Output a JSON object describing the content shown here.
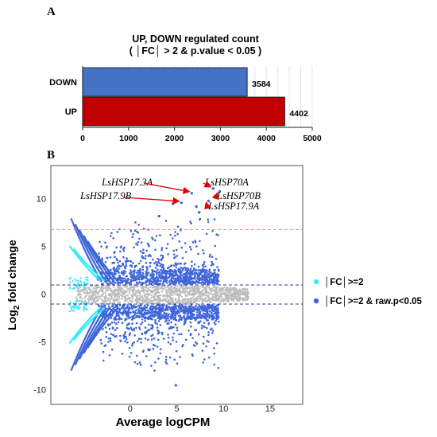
{
  "panel_a": {
    "letter": "A",
    "chart_data": {
      "type": "bar",
      "orientation": "horizontal",
      "title": "UP, DOWN regulated count",
      "subtitle": "( │FC│ > 2 & p.value < 0.05 )",
      "categories": [
        "DOWN",
        "UP"
      ],
      "values": [
        3584,
        4402
      ],
      "value_labels": [
        "3584",
        "4402"
      ],
      "colors": [
        "#4472c4",
        "#c00000"
      ],
      "xlim": [
        0,
        5000
      ],
      "xticks": [
        "0",
        "1000",
        "2000",
        "3000",
        "4000",
        "5000"
      ],
      "grid": true
    }
  },
  "panel_b": {
    "letter": "B",
    "chart_data": {
      "type": "scatter",
      "xlabel": "Average logCPM",
      "ylabel_prefix": "Log",
      "ylabel_sub": "2",
      "ylabel_suffix": " fold change",
      "xlim": [
        -8.5,
        18.5
      ],
      "ylim": [
        -11.5,
        13.5
      ],
      "xticks": [
        "0",
        "5",
        "10",
        "15"
      ],
      "yticks": [
        "10",
        "5",
        "0",
        "-5",
        "-10"
      ],
      "hlines": [
        {
          "y": 6.8,
          "color": "#ff8080"
        },
        {
          "y": 1.0,
          "color": "#333399"
        },
        {
          "y": -1.0,
          "color": "#333399"
        }
      ],
      "legend": [
        "│FC│>=2",
        "│FC│>=2 & raw.p<0.05"
      ],
      "legend_colors": [
        "#33eaff",
        "#3f66d8"
      ],
      "nonsig_color": "#bdbdbd",
      "annotations": [
        {
          "label": "LsHSP17.3A",
          "x": 6.6,
          "y": 10.6
        },
        {
          "label": "LsHSP70A",
          "x": 8.9,
          "y": 11.1
        },
        {
          "label": "LsHSP17.9B",
          "x": 5.5,
          "y": 9.6
        },
        {
          "label": "LsHSP70B",
          "x": 9.6,
          "y": 10.8
        },
        {
          "label": "LsHSP17.9A",
          "x": 8.4,
          "y": 9.8
        }
      ],
      "highlight_points": [
        {
          "x": 6.6,
          "y": 10.6
        },
        {
          "x": 8.9,
          "y": 11.1
        },
        {
          "x": 5.5,
          "y": 9.6
        },
        {
          "x": 9.6,
          "y": 10.8
        },
        {
          "x": 8.4,
          "y": 9.8
        },
        {
          "x": 4.6,
          "y": 9.5
        },
        {
          "x": 7.1,
          "y": 9.2
        },
        {
          "x": 7.4,
          "y": 8.6
        },
        {
          "x": 3.1,
          "y": 8.2
        }
      ],
      "min_point": {
        "x": 4.9,
        "y": -9.5
      }
    }
  }
}
